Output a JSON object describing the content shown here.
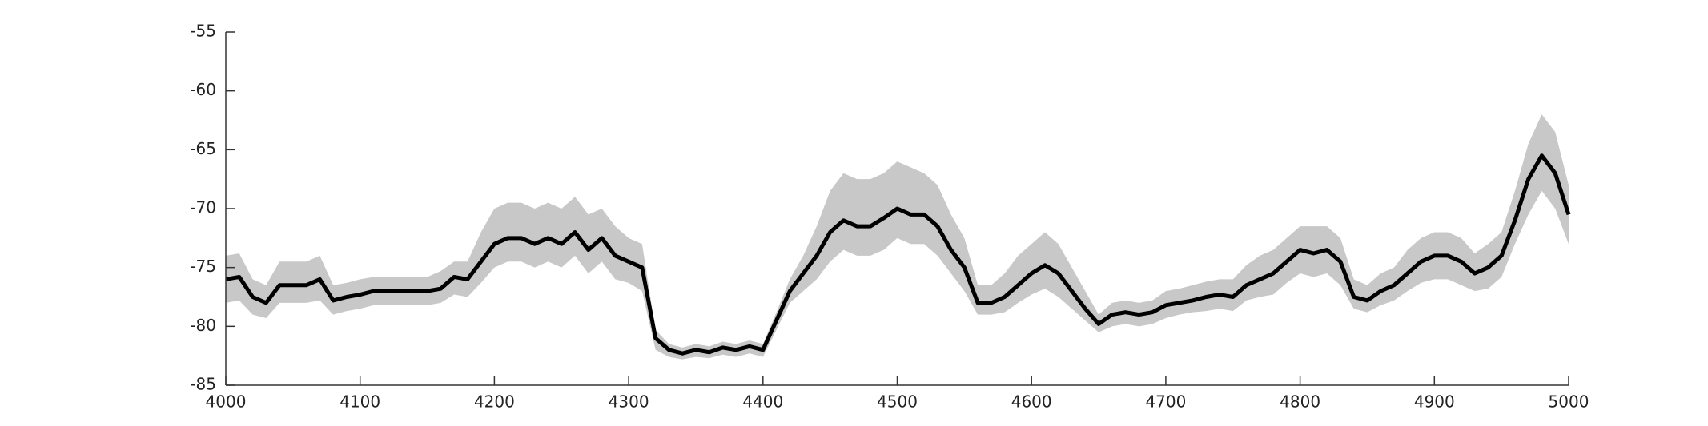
{
  "chart_data": {
    "type": "line",
    "x": [
      4000,
      4010,
      4020,
      4030,
      4040,
      4050,
      4060,
      4070,
      4080,
      4090,
      4100,
      4110,
      4120,
      4130,
      4140,
      4150,
      4160,
      4170,
      4180,
      4190,
      4200,
      4210,
      4220,
      4230,
      4240,
      4250,
      4260,
      4270,
      4280,
      4290,
      4300,
      4310,
      4320,
      4330,
      4340,
      4350,
      4360,
      4370,
      4380,
      4390,
      4400,
      4410,
      4420,
      4430,
      4440,
      4450,
      4460,
      4470,
      4480,
      4490,
      4500,
      4510,
      4520,
      4530,
      4540,
      4550,
      4560,
      4570,
      4580,
      4590,
      4600,
      4610,
      4620,
      4630,
      4640,
      4650,
      4660,
      4670,
      4680,
      4690,
      4700,
      4710,
      4720,
      4730,
      4740,
      4750,
      4760,
      4770,
      4780,
      4790,
      4800,
      4810,
      4820,
      4830,
      4840,
      4850,
      4860,
      4870,
      4880,
      4890,
      4900,
      4910,
      4920,
      4930,
      4940,
      4950,
      4960,
      4970,
      4980,
      4990,
      5000
    ],
    "band": {
      "color": "#c8c8c8",
      "upper": [
        -74,
        -73.8,
        -76,
        -76.5,
        -74.5,
        -74.5,
        -74.5,
        -74,
        -76.5,
        -76.3,
        -76,
        -75.8,
        -75.8,
        -75.8,
        -75.8,
        -75.8,
        -75.3,
        -74.5,
        -74.5,
        -72,
        -70,
        -69.5,
        -69.5,
        -70,
        -69.5,
        -70,
        -69,
        -70.5,
        -70,
        -71.5,
        -72.5,
        -73,
        -80.3,
        -81.5,
        -81.8,
        -81.5,
        -81.7,
        -81.3,
        -81.5,
        -81.2,
        -81.5,
        -78.8,
        -76,
        -74,
        -71.5,
        -68.5,
        -67,
        -67.5,
        -67.5,
        -67,
        -66,
        -66.5,
        -67,
        -68,
        -70.5,
        -72.5,
        -76.5,
        -76.5,
        -75.5,
        -74,
        -73,
        -72,
        -73,
        -75,
        -77,
        -79,
        -78,
        -77.8,
        -78,
        -77.8,
        -77,
        -76.8,
        -76.5,
        -76.2,
        -76,
        -76,
        -74.8,
        -74,
        -73.5,
        -72.5,
        -71.5,
        -71.5,
        -71.5,
        -72.5,
        -76,
        -76.5,
        -75.5,
        -75,
        -73.5,
        -72.5,
        -72,
        -72,
        -72.5,
        -73.8,
        -73,
        -72,
        -68.5,
        -64.5,
        -62,
        -63.5,
        -68
      ],
      "lower": [
        -78,
        -77.8,
        -79,
        -79.3,
        -78,
        -78,
        -78,
        -77.8,
        -79,
        -78.7,
        -78.5,
        -78.2,
        -78.2,
        -78.2,
        -78.2,
        -78.2,
        -78,
        -77.3,
        -77.5,
        -76.3,
        -75,
        -74.5,
        -74.5,
        -75,
        -74.5,
        -75,
        -74,
        -75.5,
        -74.5,
        -76,
        -76.3,
        -77,
        -82,
        -82.6,
        -82.8,
        -82.6,
        -82.7,
        -82.4,
        -82.6,
        -82.3,
        -82.6,
        -80.3,
        -78,
        -77,
        -76,
        -74.5,
        -73.5,
        -74,
        -74,
        -73.5,
        -72.5,
        -73,
        -73,
        -74,
        -75.5,
        -77,
        -79,
        -79,
        -78.8,
        -78,
        -77.3,
        -76.8,
        -77.5,
        -78.5,
        -79.5,
        -80.5,
        -80,
        -79.8,
        -80,
        -79.8,
        -79.3,
        -79,
        -78.8,
        -78.7,
        -78.5,
        -78.7,
        -77.8,
        -77.5,
        -77.3,
        -76.3,
        -75.5,
        -75.8,
        -75.5,
        -76.5,
        -78.5,
        -78.8,
        -78.2,
        -77.8,
        -77,
        -76.3,
        -76,
        -76,
        -76.5,
        -77,
        -76.8,
        -75.8,
        -73,
        -70.5,
        -68.5,
        -70,
        -73
      ]
    },
    "series": [
      {
        "color": "#000000",
        "values": [
          -76,
          -75.8,
          -77.5,
          -78,
          -76.5,
          -76.5,
          -76.5,
          -76,
          -77.8,
          -77.5,
          -77.3,
          -77,
          -77,
          -77,
          -77,
          -77,
          -76.8,
          -75.8,
          -76,
          -74.5,
          -73,
          -72.5,
          -72.5,
          -73,
          -72.5,
          -73,
          -72,
          -73.5,
          -72.5,
          -74,
          -74.5,
          -75,
          -81,
          -82,
          -82.3,
          -82,
          -82.2,
          -81.8,
          -82,
          -81.7,
          -82,
          -79.5,
          -77,
          -75.5,
          -74,
          -72,
          -71,
          -71.5,
          -71.5,
          -70.8,
          -70,
          -70.5,
          -70.5,
          -71.5,
          -73.5,
          -75,
          -78,
          -78,
          -77.5,
          -76.5,
          -75.5,
          -74.8,
          -75.5,
          -77,
          -78.5,
          -79.8,
          -79,
          -78.8,
          -79,
          -78.8,
          -78.2,
          -78,
          -77.8,
          -77.5,
          -77.3,
          -77.5,
          -76.5,
          -76,
          -75.5,
          -74.5,
          -73.5,
          -73.8,
          -73.5,
          -74.5,
          -77.5,
          -77.8,
          -77,
          -76.5,
          -75.5,
          -74.5,
          -74,
          -74,
          -74.5,
          -75.5,
          -75,
          -74,
          -71,
          -67.5,
          -65.5,
          -67,
          -70.5
        ]
      }
    ],
    "xlim": [
      4000,
      5000
    ],
    "xticks": [
      4000,
      4100,
      4200,
      4300,
      4400,
      4500,
      4600,
      4700,
      4800,
      4900,
      5000
    ],
    "ylim": [
      -85,
      -55
    ],
    "yticks": [
      -85,
      -80,
      -75,
      -70,
      -65,
      -60,
      -55
    ]
  }
}
